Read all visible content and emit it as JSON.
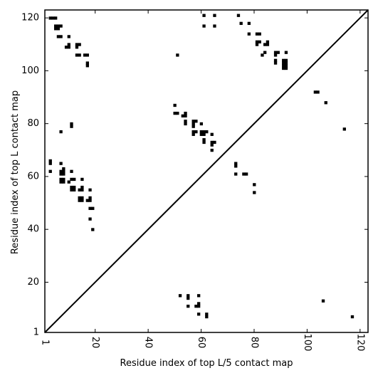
{
  "chart_data": {
    "type": "scatter",
    "title": "",
    "xlabel": "Residue index of top L/5 contact map",
    "ylabel": "Residue index of top L contact map",
    "xlim": [
      1,
      123
    ],
    "ylim": [
      1,
      123
    ],
    "x_ticks": [
      1,
      20,
      40,
      60,
      80,
      100,
      120
    ],
    "y_ticks": [
      1,
      20,
      40,
      60,
      80,
      100,
      120
    ],
    "x_tick_labels": [
      "1",
      "20",
      "40",
      "60",
      "80",
      "100",
      "120"
    ],
    "y_tick_labels": [
      "1",
      "20",
      "40",
      "60",
      "80",
      "100",
      "120"
    ],
    "grid": false,
    "diagonal": true,
    "marker": "square",
    "marker_color": "#000000",
    "series": [
      {
        "values": [
          [
            3,
            120
          ],
          [
            4,
            120
          ],
          [
            5,
            120
          ],
          [
            5,
            117
          ],
          [
            5,
            116
          ],
          [
            6,
            117
          ],
          [
            6,
            116
          ],
          [
            7,
            117
          ],
          [
            6,
            113
          ],
          [
            7,
            113
          ],
          [
            10,
            113
          ],
          [
            9,
            109
          ],
          [
            10,
            109
          ],
          [
            10,
            110
          ],
          [
            13,
            110
          ],
          [
            13,
            109
          ],
          [
            14,
            110
          ],
          [
            13,
            106
          ],
          [
            14,
            106
          ],
          [
            16,
            106
          ],
          [
            17,
            106
          ],
          [
            17,
            103
          ],
          [
            17,
            102
          ],
          [
            61,
            121
          ],
          [
            61,
            117
          ],
          [
            65,
            121
          ],
          [
            65,
            117
          ],
          [
            74,
            121
          ],
          [
            75,
            118
          ],
          [
            78,
            118
          ],
          [
            78,
            114
          ],
          [
            81,
            114
          ],
          [
            82,
            114
          ],
          [
            81,
            111
          ],
          [
            81,
            110
          ],
          [
            82,
            111
          ],
          [
            84,
            110
          ],
          [
            85,
            111
          ],
          [
            85,
            110
          ],
          [
            84,
            107
          ],
          [
            83,
            106
          ],
          [
            88,
            107
          ],
          [
            88,
            106
          ],
          [
            89,
            107
          ],
          [
            88,
            104
          ],
          [
            88,
            103
          ],
          [
            91,
            104
          ],
          [
            91,
            103
          ],
          [
            91,
            102
          ],
          [
            91,
            101
          ],
          [
            92,
            104
          ],
          [
            92,
            103
          ],
          [
            92,
            102
          ],
          [
            92,
            101
          ],
          [
            92,
            107
          ],
          [
            51,
            106
          ],
          [
            103,
            92
          ],
          [
            104,
            92
          ],
          [
            107,
            88
          ],
          [
            114,
            78
          ],
          [
            50,
            87
          ],
          [
            50,
            84
          ],
          [
            51,
            84
          ],
          [
            53,
            83
          ],
          [
            54,
            83
          ],
          [
            54,
            84
          ],
          [
            54,
            81
          ],
          [
            54,
            80
          ],
          [
            57,
            81
          ],
          [
            57,
            80
          ],
          [
            57,
            79
          ],
          [
            58,
            81
          ],
          [
            60,
            80
          ],
          [
            57,
            77
          ],
          [
            57,
            76
          ],
          [
            58,
            77
          ],
          [
            60,
            77
          ],
          [
            60,
            76
          ],
          [
            61,
            77
          ],
          [
            61,
            76
          ],
          [
            62,
            77
          ],
          [
            61,
            74
          ],
          [
            61,
            73
          ],
          [
            64,
            76
          ],
          [
            64,
            73
          ],
          [
            64,
            72
          ],
          [
            65,
            73
          ],
          [
            64,
            70
          ],
          [
            3,
            66
          ],
          [
            3,
            65
          ],
          [
            3,
            62
          ],
          [
            7,
            65
          ],
          [
            7,
            62
          ],
          [
            7,
            61
          ],
          [
            8,
            63
          ],
          [
            8,
            62
          ],
          [
            8,
            61
          ],
          [
            7,
            59
          ],
          [
            7,
            58
          ],
          [
            8,
            59
          ],
          [
            8,
            58
          ],
          [
            10,
            58
          ],
          [
            11,
            59
          ],
          [
            11,
            62
          ],
          [
            12,
            59
          ],
          [
            11,
            56
          ],
          [
            11,
            55
          ],
          [
            12,
            56
          ],
          [
            12,
            55
          ],
          [
            14,
            55
          ],
          [
            15,
            56
          ],
          [
            15,
            55
          ],
          [
            15,
            59
          ],
          [
            14,
            52
          ],
          [
            14,
            51
          ],
          [
            15,
            52
          ],
          [
            15,
            51
          ],
          [
            17,
            51
          ],
          [
            18,
            51
          ],
          [
            18,
            52
          ],
          [
            18,
            55
          ],
          [
            18,
            48
          ],
          [
            19,
            48
          ],
          [
            18,
            44
          ],
          [
            19,
            40
          ],
          [
            7,
            77
          ],
          [
            11,
            80
          ],
          [
            11,
            79
          ],
          [
            73,
            65
          ],
          [
            73,
            64
          ],
          [
            73,
            61
          ],
          [
            76,
            61
          ],
          [
            77,
            61
          ],
          [
            80,
            57
          ],
          [
            80,
            54
          ],
          [
            52,
            15
          ],
          [
            55,
            15
          ],
          [
            55,
            14
          ],
          [
            55,
            11
          ],
          [
            58,
            11
          ],
          [
            59,
            12
          ],
          [
            59,
            11
          ],
          [
            59,
            15
          ],
          [
            59,
            8
          ],
          [
            62,
            8
          ],
          [
            62,
            7
          ],
          [
            106,
            13
          ],
          [
            117,
            7
          ]
        ]
      }
    ]
  }
}
